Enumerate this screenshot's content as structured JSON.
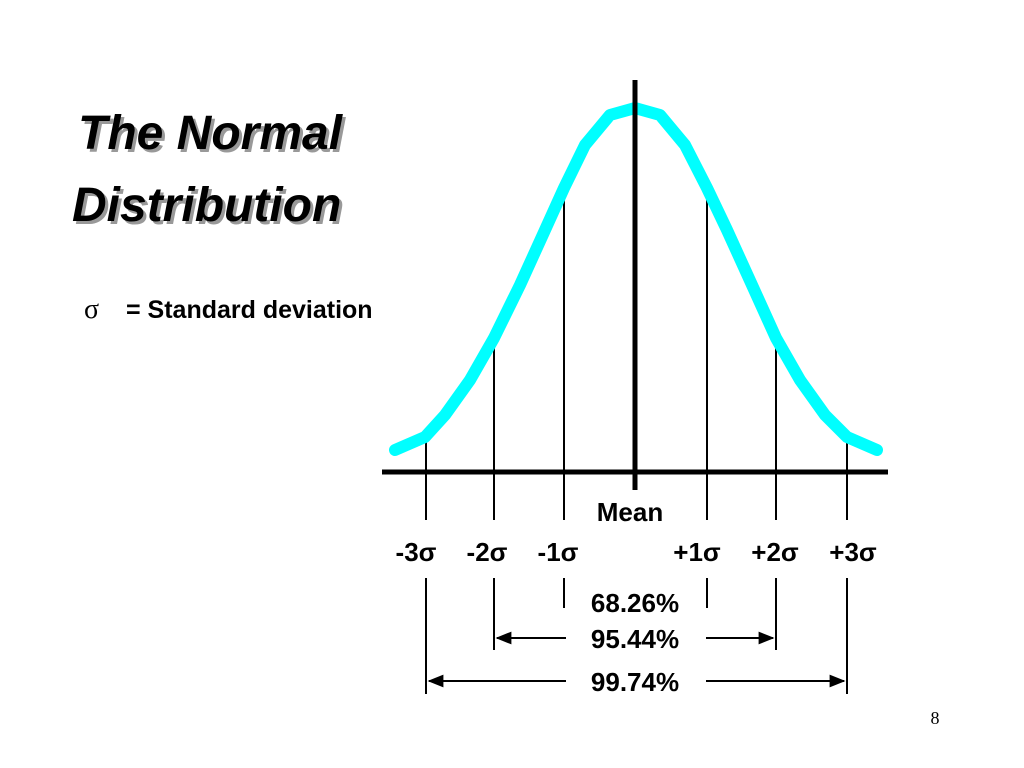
{
  "title": [
    "The Normal",
    "Distribution"
  ],
  "legend": {
    "symbol": "σ",
    "text": "= Standard deviation"
  },
  "mean_label": "Mean",
  "sigma_labels": [
    "-3σ",
    "-2σ",
    "-1σ",
    "+1σ",
    "+2σ",
    "+3σ"
  ],
  "ranges": [
    "68.26%",
    "95.44%",
    "99.74%"
  ],
  "page_number": "8"
}
